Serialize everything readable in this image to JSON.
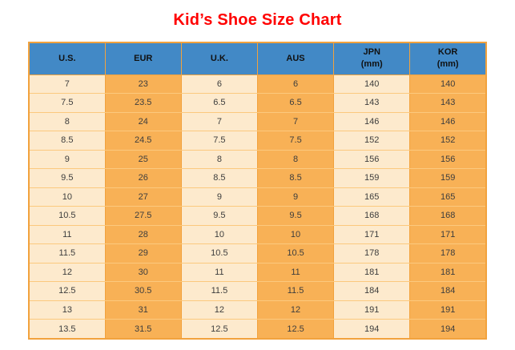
{
  "title": "Kid’s Shoe Size Chart",
  "chart_data": {
    "type": "table",
    "title": "Kid’s Shoe Size Chart",
    "columns": [
      {
        "label": "U.S."
      },
      {
        "label": "EUR"
      },
      {
        "label": "U.K."
      },
      {
        "label": "AUS"
      },
      {
        "label": "JPN",
        "sub": "(mm)"
      },
      {
        "label": "KOR",
        "sub": "(mm)"
      }
    ],
    "rows": [
      [
        "7",
        "23",
        "6",
        "6",
        "140",
        "140"
      ],
      [
        "7.5",
        "23.5",
        "6.5",
        "6.5",
        "143",
        "143"
      ],
      [
        "8",
        "24",
        "7",
        "7",
        "146",
        "146"
      ],
      [
        "8.5",
        "24.5",
        "7.5",
        "7.5",
        "152",
        "152"
      ],
      [
        "9",
        "25",
        "8",
        "8",
        "156",
        "156"
      ],
      [
        "9.5",
        "26",
        "8.5",
        "8.5",
        "159",
        "159"
      ],
      [
        "10",
        "27",
        "9",
        "9",
        "165",
        "165"
      ],
      [
        "10.5",
        "27.5",
        "9.5",
        "9.5",
        "168",
        "168"
      ],
      [
        "11",
        "28",
        "10",
        "10",
        "171",
        "171"
      ],
      [
        "11.5",
        "29",
        "10.5",
        "10.5",
        "178",
        "178"
      ],
      [
        "12",
        "30",
        "11",
        "11",
        "181",
        "181"
      ],
      [
        "12.5",
        "30.5",
        "11.5",
        "11.5",
        "184",
        "184"
      ],
      [
        "13",
        "31",
        "12",
        "12",
        "191",
        "191"
      ],
      [
        "13.5",
        "31.5",
        "12.5",
        "12.5",
        "194",
        "194"
      ]
    ]
  },
  "colors": {
    "title_red": "#ff0000",
    "header_blue": "#4289c6",
    "column_light": "#fdeacd",
    "column_orange": "#f8b156",
    "border_amber": "#f2a23d",
    "row_line": "#fcc97e",
    "header_text": "#111111",
    "body_text": "#3d3d3d"
  }
}
